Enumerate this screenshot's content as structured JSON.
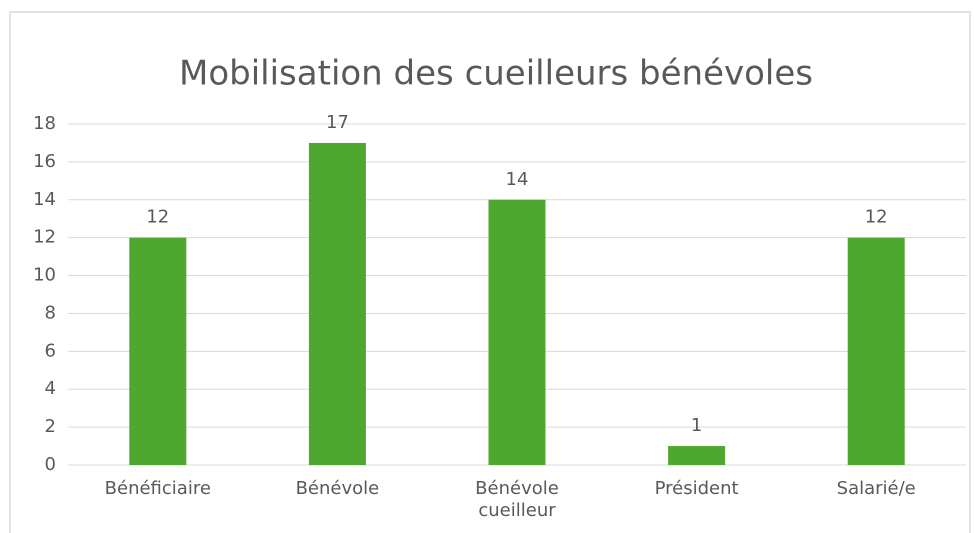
{
  "chart_data": {
    "type": "bar",
    "title": "Mobilisation des cueilleurs bénévoles",
    "categories": [
      "Bénéficiaire",
      "Bénévole",
      "Bénévole cueilleur",
      "Président",
      "Salarié/e"
    ],
    "values": [
      12,
      17,
      14,
      1,
      12
    ],
    "color": "#4ea72e",
    "ylim": [
      0,
      18
    ],
    "yticks": [
      0,
      2,
      4,
      6,
      8,
      10,
      12,
      14,
      16,
      18
    ],
    "grid": true
  }
}
